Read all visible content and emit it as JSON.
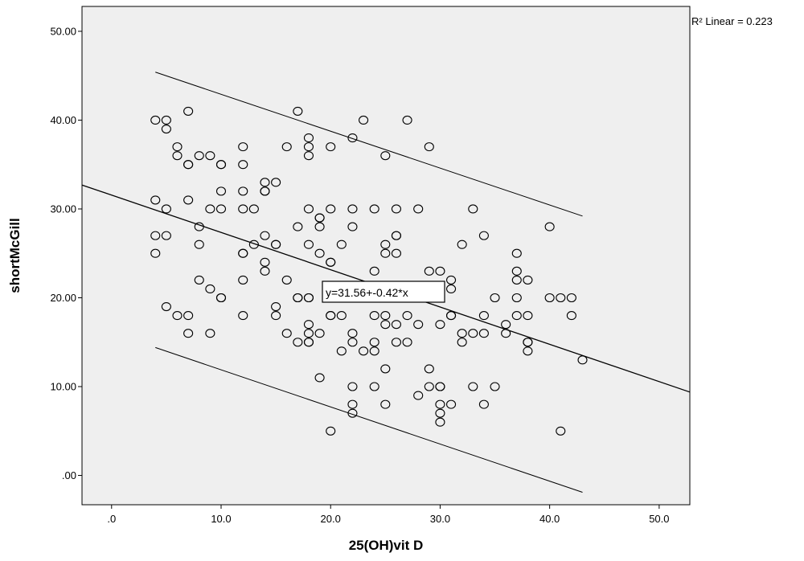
{
  "chart_data": {
    "type": "scatter",
    "xlabel": "25(OH)vit D",
    "ylabel": "shortMcGill",
    "xlim": [
      -2.7,
      52.8
    ],
    "ylim": [
      -3.3,
      52.8
    ],
    "x_ticks": [
      {
        "value": 0,
        "label": ".0"
      },
      {
        "value": 10,
        "label": "10.0"
      },
      {
        "value": 20,
        "label": "20.0"
      },
      {
        "value": 30,
        "label": "30.0"
      },
      {
        "value": 40,
        "label": "40.0"
      },
      {
        "value": 50,
        "label": "50.0"
      }
    ],
    "y_ticks": [
      {
        "value": 0,
        "label": ".00"
      },
      {
        "value": 10,
        "label": "10.00"
      },
      {
        "value": 20,
        "label": "20.00"
      },
      {
        "value": 30,
        "label": "30.00"
      },
      {
        "value": 40,
        "label": "40.00"
      },
      {
        "value": 50,
        "label": "50.00"
      }
    ],
    "grid": false,
    "plot_background": "#efefef",
    "marker_color": "#000000",
    "r2_label": "R² Linear = 0.223",
    "fit_label": "y=31.56+-0.42*x",
    "fit_line": {
      "intercept": 31.56,
      "slope": -0.42
    },
    "upper_prediction_line": [
      [
        4,
        45.4
      ],
      [
        43,
        29.2
      ]
    ],
    "lower_prediction_line": [
      [
        4,
        14.4
      ],
      [
        43,
        -1.9
      ]
    ],
    "points": [
      [
        4,
        40
      ],
      [
        4,
        31
      ],
      [
        4,
        27
      ],
      [
        4,
        25
      ],
      [
        5,
        40
      ],
      [
        5,
        39
      ],
      [
        5,
        30
      ],
      [
        5,
        27
      ],
      [
        5,
        19
      ],
      [
        6,
        37
      ],
      [
        6,
        36
      ],
      [
        6,
        18
      ],
      [
        7,
        41
      ],
      [
        7,
        35
      ],
      [
        7,
        35
      ],
      [
        7,
        31
      ],
      [
        7,
        18
      ],
      [
        7,
        16
      ],
      [
        8,
        36
      ],
      [
        8,
        28
      ],
      [
        8,
        26
      ],
      [
        8,
        22
      ],
      [
        9,
        36
      ],
      [
        9,
        30
      ],
      [
        9,
        21
      ],
      [
        9,
        16
      ],
      [
        10,
        35
      ],
      [
        10,
        35
      ],
      [
        10,
        32
      ],
      [
        10,
        30
      ],
      [
        10,
        20
      ],
      [
        10,
        20
      ],
      [
        12,
        37
      ],
      [
        12,
        35
      ],
      [
        12,
        32
      ],
      [
        12,
        30
      ],
      [
        12,
        25
      ],
      [
        12,
        25
      ],
      [
        12,
        22
      ],
      [
        12,
        18
      ],
      [
        13,
        30
      ],
      [
        13,
        26
      ],
      [
        14,
        33
      ],
      [
        14,
        32
      ],
      [
        14,
        32
      ],
      [
        14,
        27
      ],
      [
        14,
        24
      ],
      [
        14,
        23
      ],
      [
        15,
        33
      ],
      [
        15,
        26
      ],
      [
        15,
        26
      ],
      [
        15,
        19
      ],
      [
        15,
        18
      ],
      [
        16,
        37
      ],
      [
        16,
        22
      ],
      [
        16,
        16
      ],
      [
        17,
        41
      ],
      [
        17,
        28
      ],
      [
        17,
        20
      ],
      [
        17,
        20
      ],
      [
        17,
        15
      ],
      [
        18,
        38
      ],
      [
        18,
        37
      ],
      [
        18,
        36
      ],
      [
        18,
        30
      ],
      [
        18,
        26
      ],
      [
        18,
        20
      ],
      [
        18,
        20
      ],
      [
        18,
        17
      ],
      [
        18,
        16
      ],
      [
        18,
        15
      ],
      [
        18,
        15
      ],
      [
        19,
        29
      ],
      [
        19,
        29
      ],
      [
        19,
        28
      ],
      [
        19,
        25
      ],
      [
        19,
        16
      ],
      [
        19,
        11
      ],
      [
        20,
        37
      ],
      [
        20,
        30
      ],
      [
        20,
        24
      ],
      [
        20,
        24
      ],
      [
        20,
        18
      ],
      [
        20,
        18
      ],
      [
        20,
        5
      ],
      [
        21,
        26
      ],
      [
        21,
        18
      ],
      [
        21,
        14
      ],
      [
        22,
        38
      ],
      [
        22,
        30
      ],
      [
        22,
        28
      ],
      [
        22,
        16
      ],
      [
        22,
        15
      ],
      [
        22,
        10
      ],
      [
        22,
        8
      ],
      [
        22,
        7
      ],
      [
        23,
        40
      ],
      [
        23,
        20
      ],
      [
        23,
        14
      ],
      [
        24,
        30
      ],
      [
        24,
        23
      ],
      [
        24,
        18
      ],
      [
        24,
        15
      ],
      [
        24,
        14
      ],
      [
        24,
        10
      ],
      [
        25,
        36
      ],
      [
        25,
        26
      ],
      [
        25,
        25
      ],
      [
        25,
        20
      ],
      [
        25,
        18
      ],
      [
        25,
        17
      ],
      [
        25,
        12
      ],
      [
        25,
        8
      ],
      [
        26,
        30
      ],
      [
        26,
        27
      ],
      [
        26,
        27
      ],
      [
        26,
        25
      ],
      [
        26,
        17
      ],
      [
        26,
        15
      ],
      [
        27,
        40
      ],
      [
        27,
        20
      ],
      [
        27,
        18
      ],
      [
        27,
        15
      ],
      [
        28,
        30
      ],
      [
        28,
        20
      ],
      [
        28,
        17
      ],
      [
        28,
        9
      ],
      [
        29,
        37
      ],
      [
        29,
        23
      ],
      [
        29,
        21
      ],
      [
        29,
        20
      ],
      [
        29,
        12
      ],
      [
        29,
        10
      ],
      [
        30,
        23
      ],
      [
        30,
        21
      ],
      [
        30,
        17
      ],
      [
        30,
        10
      ],
      [
        30,
        10
      ],
      [
        30,
        8
      ],
      [
        30,
        7
      ],
      [
        30,
        6
      ],
      [
        31,
        22
      ],
      [
        31,
        21
      ],
      [
        31,
        18
      ],
      [
        31,
        18
      ],
      [
        31,
        8
      ],
      [
        32,
        26
      ],
      [
        32,
        16
      ],
      [
        32,
        15
      ],
      [
        33,
        30
      ],
      [
        33,
        16
      ],
      [
        33,
        10
      ],
      [
        34,
        27
      ],
      [
        34,
        18
      ],
      [
        34,
        16
      ],
      [
        34,
        8
      ],
      [
        35,
        20
      ],
      [
        35,
        10
      ],
      [
        36,
        17
      ],
      [
        36,
        16
      ],
      [
        37,
        25
      ],
      [
        37,
        23
      ],
      [
        37,
        22
      ],
      [
        37,
        20
      ],
      [
        37,
        18
      ],
      [
        38,
        22
      ],
      [
        38,
        18
      ],
      [
        38,
        15
      ],
      [
        38,
        15
      ],
      [
        38,
        14
      ],
      [
        40,
        28
      ],
      [
        40,
        20
      ],
      [
        41,
        20
      ],
      [
        41,
        5
      ],
      [
        42,
        20
      ],
      [
        42,
        18
      ],
      [
        43,
        13
      ]
    ]
  }
}
